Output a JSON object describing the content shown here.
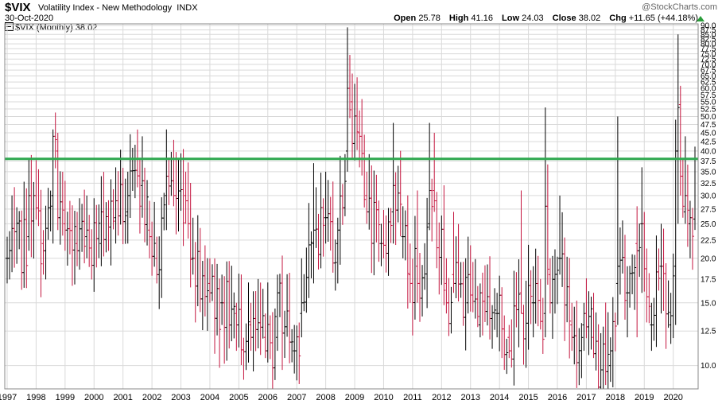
{
  "header": {
    "symbol": "$VIX",
    "description": "Volatility Index - New Methodology",
    "exchange": "INDX",
    "date": "30-Oct-2020",
    "source": "@StockCharts.com",
    "open_label": "Open",
    "open": "25.78",
    "high_label": "High",
    "high": "41.16",
    "low_label": "Low",
    "low": "24.03",
    "close_label": "Close",
    "close": "38.02",
    "chg_label": "Chg",
    "chg": "+11.65 (+44.18%)",
    "legend": "$VIX (Monthly) 38.02"
  },
  "colors": {
    "up": "#000000",
    "down": "#c4163f",
    "hline": "#2fa84f",
    "grid": "#d9d9d9",
    "chg_arrow": "#2a9d3a"
  },
  "chart_data": {
    "type": "ohlc",
    "scale": "log",
    "timeframe": "monthly",
    "xlim": [
      "1997-01",
      "2020-10"
    ],
    "ylim": [
      8.6,
      91
    ],
    "grid": true,
    "x_tick_labels": [
      "1997",
      "1998",
      "1999",
      "2000",
      "2001",
      "2002",
      "2003",
      "2004",
      "2005",
      "2006",
      "2007",
      "2008",
      "2009",
      "2010",
      "2011",
      "2012",
      "2013",
      "2014",
      "2015",
      "2016",
      "2017",
      "2018",
      "2019",
      "2020"
    ],
    "y_tick_labels": [
      "10.0",
      "12.5",
      "15.0",
      "17.5",
      "20.0",
      "22.5",
      "25.0",
      "27.5",
      "30.0",
      "32.5",
      "35.0",
      "37.5",
      "40.0",
      "42.5",
      "45.0",
      "47.5",
      "50.0",
      "52.5",
      "55.0",
      "57.5",
      "60.0",
      "62.5",
      "65.0",
      "67.5",
      "70.0",
      "72.5",
      "75.0",
      "77.5",
      "80.0",
      "82.5",
      "85.0",
      "87.5",
      "90.0"
    ],
    "horizontal_line": 38.02,
    "last_bar": {
      "open": 25.78,
      "high": 41.16,
      "low": 24.03,
      "close": 38.02
    },
    "anchors": [
      [
        "1997-01",
        20.0,
        23,
        17,
        20
      ],
      [
        "1997-10",
        23,
        38,
        21,
        30
      ],
      [
        "1998-04",
        22,
        24,
        18,
        21
      ],
      [
        "1998-08",
        30,
        46,
        22,
        44
      ],
      [
        "1998-10",
        40,
        45,
        24,
        26
      ],
      [
        "1999-01",
        25,
        33,
        21,
        24
      ],
      [
        "1999-06",
        22,
        27,
        19,
        21
      ],
      [
        "1999-10",
        23,
        30,
        20,
        24
      ],
      [
        "2000-04",
        22,
        34,
        19,
        27
      ],
      [
        "2000-10",
        26,
        36,
        22,
        29
      ],
      [
        "2001-03",
        27,
        35,
        22,
        30
      ],
      [
        "2001-09",
        32,
        44,
        26,
        33
      ],
      [
        "2001-12",
        24,
        29,
        20,
        23
      ],
      [
        "2002-03",
        20,
        23,
        17,
        18
      ],
      [
        "2002-07",
        30,
        46,
        24,
        34
      ],
      [
        "2002-10",
        33,
        43,
        28,
        30
      ],
      [
        "2003-03",
        30,
        35,
        25,
        29
      ],
      [
        "2003-06",
        20,
        26,
        18,
        20
      ],
      [
        "2004-01",
        17,
        20,
        15,
        16
      ],
      [
        "2004-06",
        15,
        18,
        13,
        15
      ],
      [
        "2004-12",
        14,
        15,
        11,
        13
      ],
      [
        "2005-06",
        13,
        15,
        11,
        12
      ],
      [
        "2005-12",
        12,
        14,
        10.5,
        11
      ],
      [
        "2006-05",
        12,
        18,
        11,
        16
      ],
      [
        "2006-12",
        11,
        13,
        9.5,
        11
      ],
      [
        "2007-03",
        14,
        20,
        12,
        15
      ],
      [
        "2007-08",
        22,
        37,
        17,
        24
      ],
      [
        "2008-01",
        26,
        35,
        22,
        26
      ],
      [
        "2008-06",
        22,
        26,
        17,
        24
      ],
      [
        "2008-10",
        40,
        89,
        35,
        60
      ],
      [
        "2008-12",
        55,
        66,
        38,
        42
      ],
      [
        "2009-03",
        45,
        52,
        36,
        44
      ],
      [
        "2009-06",
        30,
        35,
        25,
        27
      ],
      [
        "2009-12",
        22,
        25,
        19,
        22
      ],
      [
        "2010-05",
        27,
        48,
        22,
        32
      ],
      [
        "2010-09",
        23,
        28,
        20,
        23
      ],
      [
        "2010-12",
        18,
        22,
        15,
        17
      ],
      [
        "2011-03",
        19,
        31,
        15,
        17
      ],
      [
        "2011-08",
        25,
        48,
        24,
        31
      ],
      [
        "2011-10",
        31,
        45,
        27,
        29
      ],
      [
        "2012-03",
        17,
        20,
        14,
        15
      ],
      [
        "2012-06",
        18,
        27,
        16,
        17
      ],
      [
        "2012-12",
        15,
        23,
        14,
        18
      ],
      [
        "2013-05",
        13,
        17,
        12,
        16
      ],
      [
        "2013-12",
        14,
        16,
        12,
        14
      ],
      [
        "2014-05",
        12,
        13,
        10.5,
        11
      ],
      [
        "2014-10",
        16,
        31,
        14,
        14
      ],
      [
        "2015-03",
        15,
        19,
        12,
        15
      ],
      [
        "2015-08",
        14,
        53,
        12,
        28
      ],
      [
        "2015-10",
        18,
        20,
        14,
        15
      ],
      [
        "2016-02",
        20,
        30,
        18,
        20
      ],
      [
        "2016-07",
        13,
        15,
        11,
        12
      ],
      [
        "2016-12",
        13,
        15,
        11,
        14
      ],
      [
        "2017-04",
        12,
        16,
        10.5,
        10.8
      ],
      [
        "2017-11",
        10,
        12,
        9.0,
        11
      ],
      [
        "2018-02",
        17,
        50,
        13,
        19
      ],
      [
        "2018-06",
        16,
        19,
        12,
        16
      ],
      [
        "2018-10",
        22,
        28,
        12,
        21
      ],
      [
        "2018-12",
        25,
        36,
        16,
        25
      ],
      [
        "2019-04",
        13,
        15,
        11,
        13
      ],
      [
        "2019-08",
        19,
        25,
        14,
        19
      ],
      [
        "2019-12",
        13,
        16,
        11.5,
        13.8
      ],
      [
        "2020-02",
        19,
        49,
        13,
        40
      ],
      [
        "2020-03",
        40,
        85,
        25,
        53
      ],
      [
        "2020-04",
        54,
        61,
        30,
        34
      ],
      [
        "2020-05",
        34,
        38,
        26,
        28
      ],
      [
        "2020-06",
        27,
        44,
        25,
        30
      ],
      [
        "2020-08",
        25,
        29,
        20,
        26
      ],
      [
        "2020-10",
        25.78,
        41.16,
        24.03,
        38.02
      ]
    ]
  }
}
